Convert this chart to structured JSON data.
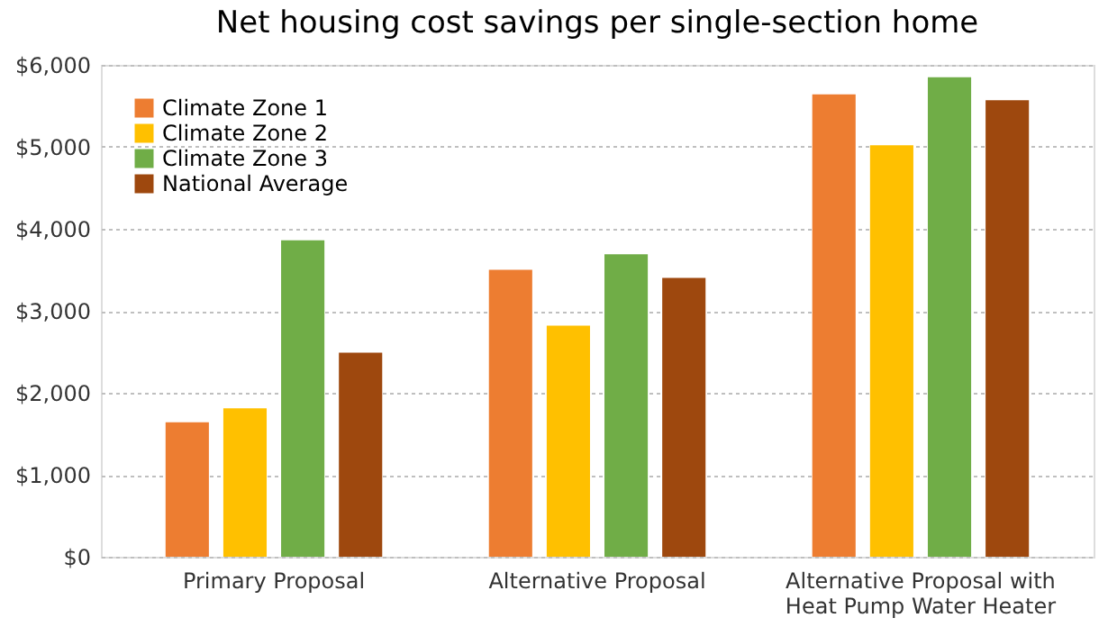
{
  "chart_data": {
    "type": "bar",
    "title": "Net housing cost savings per single-section home",
    "categories": [
      "Primary Proposal",
      "Alternative Proposal",
      "Alternative Proposal with Heat Pump Water Heater"
    ],
    "series": [
      {
        "name": "Climate Zone 1",
        "color": "#ed7d31",
        "values": [
          1640,
          3500,
          5640
        ]
      },
      {
        "name": "Climate Zone 2",
        "color": "#ffc000",
        "values": [
          1810,
          2820,
          5020
        ]
      },
      {
        "name": "Climate Zone 3",
        "color": "#70ad47",
        "values": [
          3860,
          3690,
          5850
        ]
      },
      {
        "name": "National Average",
        "color": "#9e480e",
        "values": [
          2490,
          3400,
          5570
        ]
      }
    ],
    "ylim": [
      0,
      6000
    ],
    "yticks": [
      {
        "value": 0,
        "label": "$0"
      },
      {
        "value": 1000,
        "label": "$1,000"
      },
      {
        "value": 2000,
        "label": "$2,000"
      },
      {
        "value": 3000,
        "label": "$3,000"
      },
      {
        "value": 4000,
        "label": "$4,000"
      },
      {
        "value": 5000,
        "label": "$5,000"
      },
      {
        "value": 6000,
        "label": "$6,000"
      }
    ],
    "grid": "y",
    "legend": "top left"
  }
}
